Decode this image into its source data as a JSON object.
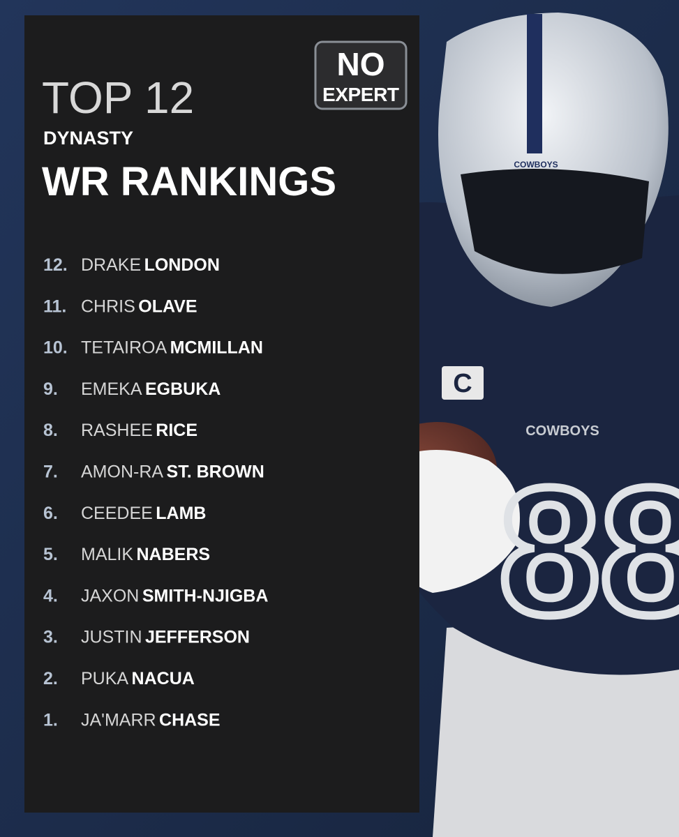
{
  "header": {
    "title": "TOP 12",
    "subtitle": "DYNASTY",
    "heading": "WR RANKINGS"
  },
  "logo": {
    "line1": "NO",
    "line2": "EXPERT"
  },
  "rankings": [
    {
      "rank": "12.",
      "first": "DRAKE",
      "last": "LONDON"
    },
    {
      "rank": "11.",
      "first": "CHRIS",
      "last": "OLAVE"
    },
    {
      "rank": "10.",
      "first": "TETAIROA",
      "last": "MCMILLAN"
    },
    {
      "rank": "9.",
      "first": "EMEKA",
      "last": "EGBUKA"
    },
    {
      "rank": "8.",
      "first": "RASHEE",
      "last": "RICE"
    },
    {
      "rank": "7.",
      "first": "AMON-RA",
      "last": "ST. BROWN"
    },
    {
      "rank": "6.",
      "first": "CEEDEE",
      "last": "LAMB"
    },
    {
      "rank": "5.",
      "first": "MALIK",
      "last": "NABERS"
    },
    {
      "rank": "4.",
      "first": "JAXON",
      "last": "SMITH-NJIGBA"
    },
    {
      "rank": "3.",
      "first": "JUSTIN",
      "last": "JEFFERSON"
    },
    {
      "rank": "2.",
      "first": "PUKA",
      "last": "NACUA"
    },
    {
      "rank": "1.",
      "first": "JA'MARR",
      "last": "CHASE"
    }
  ],
  "player": {
    "helmet_text": "COWBOYS",
    "jersey_text": "COWBOYS",
    "captain_patch": "C",
    "number": "88"
  }
}
